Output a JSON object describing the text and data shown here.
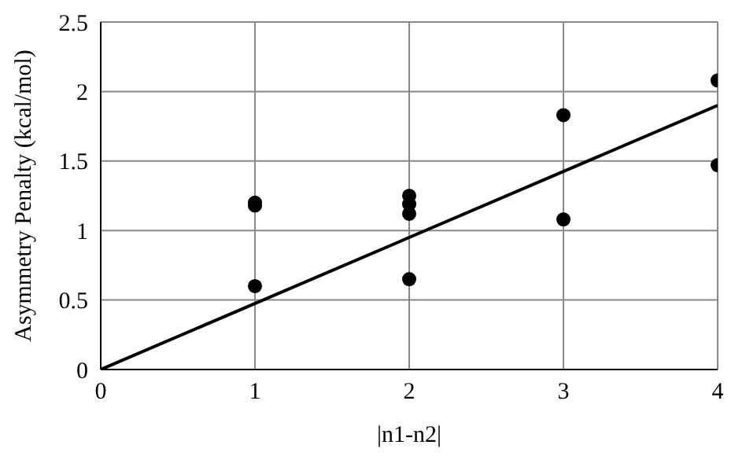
{
  "chart_data": {
    "type": "scatter",
    "xlabel": "|n1-n2|",
    "ylabel": "Asymmetry Penalty (kcal/mol)",
    "xlim": [
      0,
      4
    ],
    "xticks": [
      0,
      1,
      2,
      3,
      4
    ],
    "ylim": [
      0,
      2.5
    ],
    "yticks": [
      0,
      0.5,
      1,
      1.5,
      2,
      2.5
    ],
    "grid": true,
    "marker": "circle",
    "series": [
      {
        "color": "#000000",
        "x": [
          1,
          1,
          1,
          2,
          2,
          2,
          2,
          3,
          3,
          4,
          4
        ],
        "values": [
          1.2,
          1.18,
          0.6,
          1.25,
          1.19,
          1.12,
          0.65,
          1.83,
          1.08,
          2.08,
          1.47
        ]
      },
      {
        "type": "line",
        "color": "#000000",
        "marker": "none",
        "line_style": "solid",
        "x": [
          0,
          4
        ],
        "values": [
          0,
          1.9
        ]
      }
    ]
  }
}
